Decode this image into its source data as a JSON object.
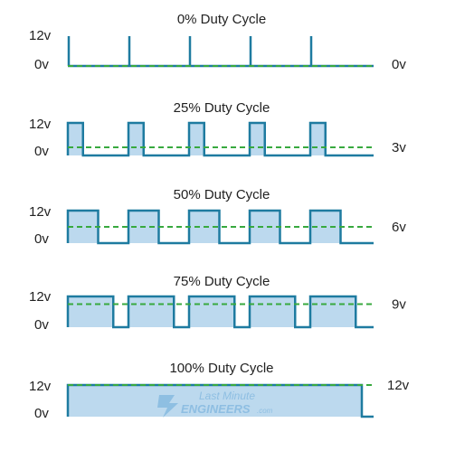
{
  "colors": {
    "signal": "#1e7ba0",
    "fill": "#bcd9ee",
    "average": "#38a93f",
    "text": "#222222",
    "watermark": "#7fb6de"
  },
  "panels": [
    {
      "title": "0% Duty Cycle",
      "duty": 0,
      "high_label": "12v",
      "low_label": "0v",
      "avg_label": "0v"
    },
    {
      "title": "25% Duty Cycle",
      "duty": 0.25,
      "high_label": "12v",
      "low_label": "0v",
      "avg_label": "3v"
    },
    {
      "title": "50% Duty Cycle",
      "duty": 0.5,
      "high_label": "12v",
      "low_label": "0v",
      "avg_label": "6v"
    },
    {
      "title": "75% Duty Cycle",
      "duty": 0.75,
      "high_label": "12v",
      "low_label": "0v",
      "avg_label": "9v"
    },
    {
      "title": "100% Duty Cycle",
      "duty": 1,
      "high_label": "12v",
      "low_label": "0v",
      "avg_label": "12v"
    }
  ],
  "watermark": {
    "line1": "Last Minute",
    "line2": "ENGINEERS",
    "suffix": ".com",
    "icon": "lightning-logo-icon"
  }
}
